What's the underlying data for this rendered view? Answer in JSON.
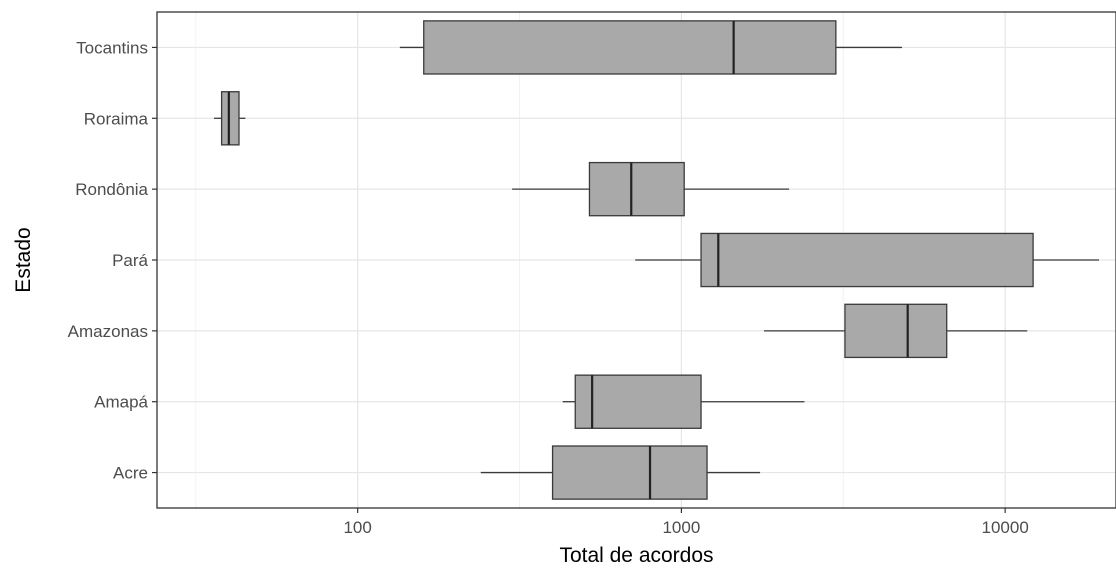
{
  "chart_data": {
    "type": "boxplot",
    "orientation": "horizontal",
    "xlabel": "Total de acordos",
    "ylabel": "Estado",
    "x_scale": "log10",
    "x_ticks": [
      100,
      1000,
      10000
    ],
    "x_tick_labels": [
      "100",
      "1000",
      "10000"
    ],
    "xlim": [
      24,
      22000
    ],
    "grid": true,
    "colors": {
      "box_fill": "#a9a9a9",
      "box_stroke": "#3a3a3a",
      "grid_major": "#e6e6e6",
      "grid_minor": "#f2f2f2",
      "panel_border": "#333333"
    },
    "categories": [
      "Acre",
      "Amapá",
      "Amazonas",
      "Pará",
      "Rondônia",
      "Roraima",
      "Tocantins"
    ],
    "series": [
      {
        "category": "Acre",
        "whisker_low": 240,
        "q1": 400,
        "median": 800,
        "q3": 1200,
        "whisker_high": 1750
      },
      {
        "category": "Amapá",
        "whisker_low": 430,
        "q1": 470,
        "median": 530,
        "q3": 1150,
        "whisker_high": 2400
      },
      {
        "category": "Amazonas",
        "whisker_low": 1800,
        "q1": 3200,
        "median": 5000,
        "q3": 6600,
        "whisker_high": 11700
      },
      {
        "category": "Pará",
        "whisker_low": 720,
        "q1": 1150,
        "median": 1300,
        "q3": 12200,
        "whisker_high": 19500
      },
      {
        "category": "Rondônia",
        "whisker_low": 300,
        "q1": 520,
        "median": 700,
        "q3": 1020,
        "whisker_high": 2150
      },
      {
        "category": "Roraima",
        "whisker_low": 36,
        "q1": 38,
        "median": 40,
        "q3": 43,
        "whisker_high": 45
      },
      {
        "category": "Tocantins",
        "whisker_low": 135,
        "q1": 160,
        "median": 1450,
        "q3": 3000,
        "whisker_high": 4800
      }
    ]
  }
}
